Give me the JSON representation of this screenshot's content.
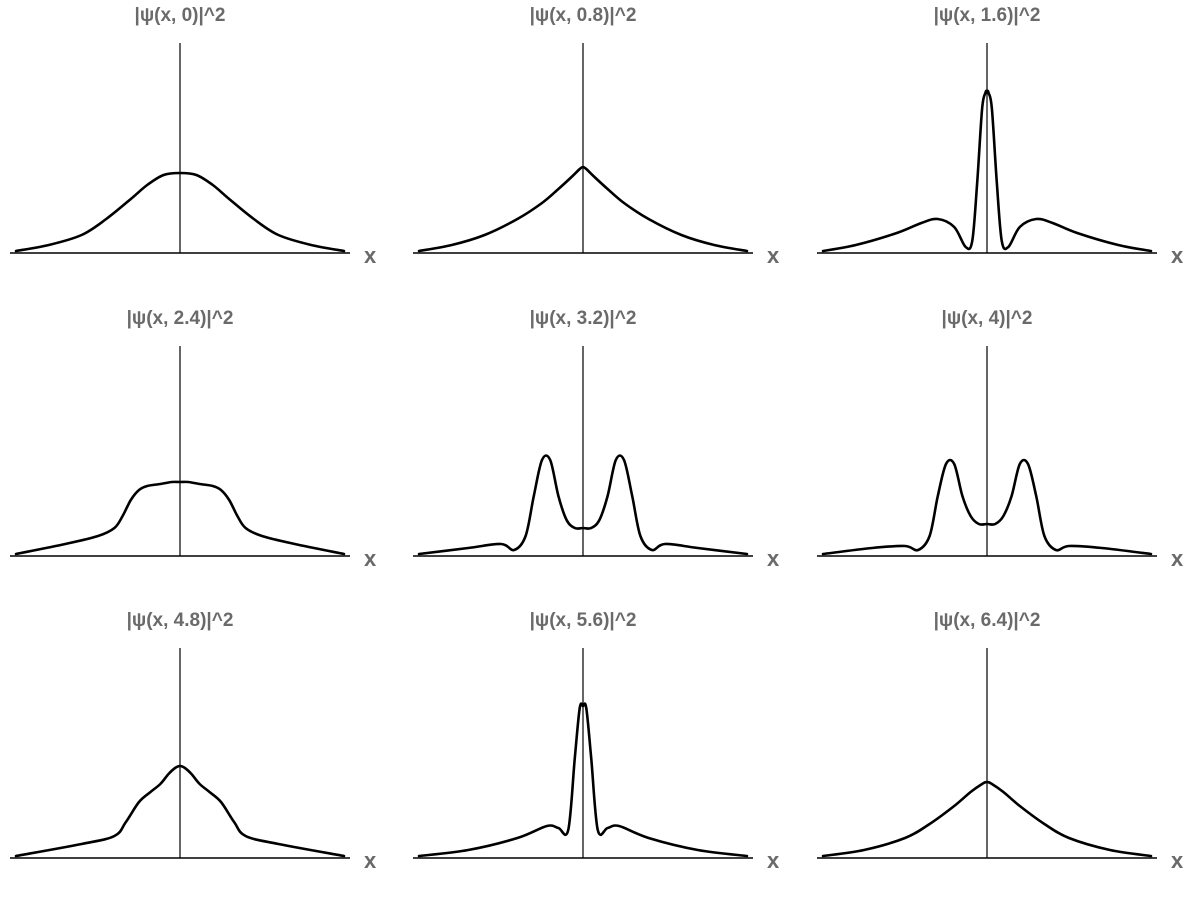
{
  "chart_data": [
    {
      "type": "line",
      "title": "|ψ(x, 0)|^2",
      "xlabel": "x",
      "ylim": [
        0,
        1
      ],
      "series": [
        {
          "x": [
            -1,
            -0.8,
            -0.6,
            -0.45,
            -0.3,
            -0.2,
            -0.1,
            0,
            0.1,
            0.2,
            0.3,
            0.45,
            0.6,
            0.8,
            1
          ],
          "y": [
            0.01,
            0.04,
            0.09,
            0.17,
            0.27,
            0.34,
            0.39,
            0.4,
            0.39,
            0.34,
            0.27,
            0.17,
            0.09,
            0.04,
            0.01
          ]
        }
      ]
    },
    {
      "type": "line",
      "title": "|ψ(x, 0.8)|^2",
      "xlabel": "x",
      "ylim": [
        0,
        1
      ],
      "series": [
        {
          "x": [
            -1,
            -0.8,
            -0.6,
            -0.4,
            -0.25,
            -0.15,
            -0.07,
            -0.02,
            0,
            0.02,
            0.07,
            0.15,
            0.25,
            0.4,
            0.6,
            0.8,
            1
          ],
          "y": [
            0.01,
            0.04,
            0.09,
            0.17,
            0.25,
            0.32,
            0.38,
            0.42,
            0.43,
            0.42,
            0.38,
            0.32,
            0.25,
            0.17,
            0.09,
            0.04,
            0.01
          ]
        }
      ]
    },
    {
      "type": "line",
      "title": "|ψ(x, 1.6)|^2",
      "xlabel": "x",
      "ylim": [
        0,
        1
      ],
      "series": [
        {
          "x": [
            -1,
            -0.8,
            -0.55,
            -0.4,
            -0.3,
            -0.2,
            -0.13,
            -0.09,
            -0.06,
            -0.03,
            -0.01,
            0,
            0.01,
            0.03,
            0.06,
            0.09,
            0.13,
            0.2,
            0.3,
            0.4,
            0.55,
            0.8,
            1
          ],
          "y": [
            0.01,
            0.04,
            0.1,
            0.15,
            0.17,
            0.13,
            0.03,
            0.06,
            0.35,
            0.72,
            0.8,
            0.81,
            0.8,
            0.72,
            0.35,
            0.06,
            0.03,
            0.13,
            0.17,
            0.15,
            0.1,
            0.04,
            0.01
          ]
        }
      ]
    },
    {
      "type": "line",
      "title": "|ψ(x, 2.4)|^2",
      "xlabel": "x",
      "ylim": [
        0,
        1
      ],
      "series": [
        {
          "x": [
            -1,
            -0.7,
            -0.5,
            -0.4,
            -0.35,
            -0.3,
            -0.25,
            -0.2,
            -0.12,
            -0.05,
            0,
            0.05,
            0.12,
            0.2,
            0.25,
            0.3,
            0.35,
            0.4,
            0.5,
            0.7,
            1
          ],
          "y": [
            0.01,
            0.06,
            0.1,
            0.14,
            0.2,
            0.28,
            0.33,
            0.35,
            0.36,
            0.37,
            0.37,
            0.37,
            0.36,
            0.35,
            0.33,
            0.28,
            0.2,
            0.14,
            0.1,
            0.06,
            0.01
          ]
        }
      ]
    },
    {
      "type": "line",
      "title": "|ψ(x, 3.2)|^2",
      "xlabel": "x",
      "ylim": [
        0,
        1
      ],
      "series": [
        {
          "x": [
            -1,
            -0.7,
            -0.5,
            -0.42,
            -0.35,
            -0.3,
            -0.25,
            -0.2,
            -0.15,
            -0.1,
            -0.05,
            0,
            0.05,
            0.1,
            0.15,
            0.2,
            0.25,
            0.3,
            0.35,
            0.42,
            0.5,
            0.7,
            1
          ],
          "y": [
            0.01,
            0.04,
            0.06,
            0.03,
            0.1,
            0.3,
            0.48,
            0.48,
            0.3,
            0.18,
            0.14,
            0.14,
            0.14,
            0.18,
            0.3,
            0.48,
            0.48,
            0.3,
            0.1,
            0.03,
            0.06,
            0.04,
            0.01
          ]
        }
      ]
    },
    {
      "type": "line",
      "title": "|ψ(x, 4)|^2",
      "xlabel": "x",
      "ylim": [
        0,
        1
      ],
      "series": [
        {
          "x": [
            -1,
            -0.7,
            -0.5,
            -0.42,
            -0.35,
            -0.3,
            -0.25,
            -0.2,
            -0.15,
            -0.1,
            -0.05,
            0,
            0.05,
            0.1,
            0.15,
            0.2,
            0.25,
            0.3,
            0.35,
            0.42,
            0.5,
            0.7,
            1
          ],
          "y": [
            0.01,
            0.04,
            0.05,
            0.03,
            0.1,
            0.3,
            0.46,
            0.46,
            0.3,
            0.2,
            0.16,
            0.16,
            0.16,
            0.2,
            0.3,
            0.46,
            0.46,
            0.3,
            0.1,
            0.03,
            0.05,
            0.04,
            0.01
          ]
        }
      ]
    },
    {
      "type": "line",
      "title": "|ψ(x, 4.8)|^2",
      "xlabel": "x",
      "ylim": [
        0,
        1
      ],
      "series": [
        {
          "x": [
            -1,
            -0.6,
            -0.4,
            -0.33,
            -0.25,
            -0.18,
            -0.12,
            -0.07,
            -0.03,
            0,
            0.03,
            0.07,
            0.12,
            0.18,
            0.25,
            0.33,
            0.4,
            0.6,
            1
          ],
          "y": [
            0.01,
            0.07,
            0.11,
            0.18,
            0.28,
            0.33,
            0.37,
            0.42,
            0.45,
            0.46,
            0.45,
            0.42,
            0.37,
            0.33,
            0.28,
            0.18,
            0.11,
            0.07,
            0.01
          ]
        }
      ]
    },
    {
      "type": "line",
      "title": "|ψ(x, 5.6)|^2",
      "xlabel": "x",
      "ylim": [
        0,
        1
      ],
      "series": [
        {
          "x": [
            -1,
            -0.7,
            -0.4,
            -0.22,
            -0.15,
            -0.09,
            -0.05,
            -0.02,
            0,
            0.02,
            0.05,
            0.09,
            0.15,
            0.22,
            0.4,
            0.7,
            1
          ],
          "y": [
            0.01,
            0.04,
            0.1,
            0.16,
            0.15,
            0.14,
            0.5,
            0.75,
            0.76,
            0.75,
            0.5,
            0.14,
            0.15,
            0.16,
            0.1,
            0.04,
            0.01
          ]
        }
      ]
    },
    {
      "type": "line",
      "title": "|ψ(x, 6.4)|^2",
      "xlabel": "x",
      "ylim": [
        0,
        1
      ],
      "series": [
        {
          "x": [
            -1,
            -0.75,
            -0.5,
            -0.35,
            -0.2,
            -0.1,
            -0.03,
            0,
            0.03,
            0.1,
            0.2,
            0.35,
            0.5,
            0.75,
            1
          ],
          "y": [
            0.01,
            0.04,
            0.1,
            0.17,
            0.26,
            0.33,
            0.37,
            0.38,
            0.37,
            0.33,
            0.26,
            0.17,
            0.1,
            0.04,
            0.01
          ]
        }
      ]
    }
  ]
}
